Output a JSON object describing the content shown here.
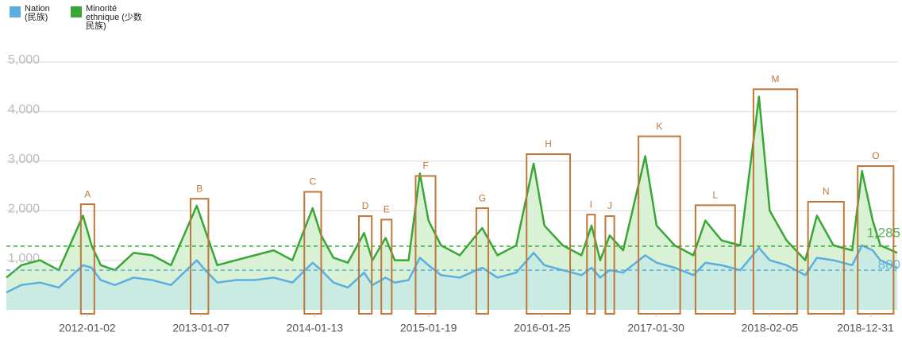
{
  "chart_data": {
    "type": "line",
    "x": [
      "2011-04-13",
      "2011-06-01",
      "2011-08-01",
      "2011-10-01",
      "2011-12-19",
      "2012-01-16",
      "2012-02-15",
      "2012-04-01",
      "2012-06-01",
      "2012-08-01",
      "2012-10-01",
      "2012-12-24",
      "2013-01-21",
      "2013-03-01",
      "2013-05-01",
      "2013-07-01",
      "2013-09-01",
      "2013-11-01",
      "2014-01-06",
      "2014-02-03",
      "2014-03-15",
      "2014-05-01",
      "2014-06-23",
      "2014-07-20",
      "2014-09-01",
      "2014-10-01",
      "2014-11-15",
      "2014-12-22",
      "2015-01-19",
      "2015-03-01",
      "2015-05-01",
      "2015-07-13",
      "2015-09-01",
      "2015-11-01",
      "2015-12-28",
      "2016-02-01",
      "2016-04-01",
      "2016-06-01",
      "2016-07-04",
      "2016-08-01",
      "2016-09-01",
      "2016-10-15",
      "2016-12-26",
      "2017-02-01",
      "2017-04-01",
      "2017-06-01",
      "2017-07-10",
      "2017-09-01",
      "2017-11-01",
      "2018-01-01",
      "2018-02-05",
      "2018-04-01",
      "2018-06-01",
      "2018-07-09",
      "2018-09-01",
      "2018-11-01",
      "2018-12-03",
      "2019-01-07",
      "2019-02-01",
      "2019-03-28"
    ],
    "series": [
      {
        "name": "Nation (民族)",
        "color": "#5aaee0",
        "values": [
          350,
          500,
          550,
          450,
          900,
          850,
          600,
          500,
          650,
          600,
          500,
          1000,
          800,
          550,
          600,
          600,
          650,
          550,
          950,
          800,
          550,
          450,
          750,
          500,
          650,
          550,
          600,
          1050,
          900,
          700,
          650,
          850,
          650,
          750,
          1150,
          900,
          800,
          700,
          850,
          650,
          800,
          750,
          1100,
          950,
          850,
          700,
          950,
          900,
          800,
          1250,
          1000,
          900,
          700,
          1050,
          1000,
          900,
          1300,
          1200,
          1000,
          850
        ]
      },
      {
        "name": "Minorité ethnique (少数民族)",
        "color": "#3aa635",
        "values": [
          650,
          900,
          1000,
          800,
          1900,
          1300,
          900,
          800,
          1150,
          1100,
          900,
          2100,
          1600,
          900,
          1000,
          1100,
          1200,
          1000,
          2050,
          1500,
          1050,
          950,
          1550,
          1000,
          1450,
          1000,
          1000,
          2750,
          1800,
          1300,
          1100,
          1650,
          1100,
          1300,
          2950,
          1700,
          1300,
          1100,
          1700,
          1000,
          1500,
          1200,
          3100,
          1700,
          1300,
          1100,
          1800,
          1400,
          1300,
          4300,
          2000,
          1400,
          1000,
          1900,
          1300,
          1200,
          2800,
          1800,
          1300,
          1150
        ]
      }
    ],
    "xlim": [
      "2011-04-13",
      "2019-03-28"
    ],
    "xticks": [
      "2012-01-02",
      "2013-01-07",
      "2014-01-13",
      "2015-01-19",
      "2016-01-25",
      "2017-01-30",
      "2018-02-05",
      "2018-12-31"
    ],
    "ylim": [
      0,
      5000
    ],
    "yticks": [
      {
        "value": 1000,
        "label": "1,000"
      },
      {
        "value": 2000,
        "label": "2,000"
      },
      {
        "value": 3000,
        "label": "3,000"
      },
      {
        "value": 4000,
        "label": "4,000"
      },
      {
        "value": 5000,
        "label": "5,000"
      }
    ],
    "grid": true,
    "reference_lines": [
      {
        "value": 1285,
        "label": "1,285",
        "color": "#3aa635"
      },
      {
        "value": 800,
        "label": "800",
        "color": "#5aaee0"
      }
    ],
    "annotations": [
      {
        "text": "A",
        "x": [
          "2011-12-12",
          "2012-01-25"
        ],
        "y": 2130
      },
      {
        "text": "B",
        "x": [
          "2012-12-04",
          "2013-01-31"
        ],
        "y": 2240
      },
      {
        "text": "C",
        "x": [
          "2013-12-10",
          "2014-02-03"
        ],
        "y": 2380
      },
      {
        "text": "D",
        "x": [
          "2014-06-06",
          "2014-07-18"
        ],
        "y": 1890
      },
      {
        "text": "E",
        "x": [
          "2014-08-18",
          "2014-09-21"
        ],
        "y": 1820
      },
      {
        "text": "F",
        "x": [
          "2014-12-08",
          "2015-02-11"
        ],
        "y": 2700
      },
      {
        "text": "G",
        "x": [
          "2015-06-24",
          "2015-08-02"
        ],
        "y": 2050
      },
      {
        "text": "H",
        "x": [
          "2015-12-05",
          "2016-04-25"
        ],
        "y": 3140
      },
      {
        "text": "I",
        "x": [
          "2016-06-19",
          "2016-07-15"
        ],
        "y": 1920
      },
      {
        "text": "J",
        "x": [
          "2016-08-18",
          "2016-09-16"
        ],
        "y": 1890
      },
      {
        "text": "K",
        "x": [
          "2016-12-04",
          "2017-04-19"
        ],
        "y": 3500
      },
      {
        "text": "L",
        "x": [
          "2017-06-08",
          "2017-10-15"
        ],
        "y": 2110
      },
      {
        "text": "M",
        "x": [
          "2017-12-14",
          "2018-05-06"
        ],
        "y": 4450
      },
      {
        "text": "N",
        "x": [
          "2018-06-10",
          "2018-10-05"
        ],
        "y": 2180
      },
      {
        "text": "O",
        "x": [
          "2018-11-19",
          "2019-03-16"
        ],
        "y": 2900
      }
    ]
  }
}
